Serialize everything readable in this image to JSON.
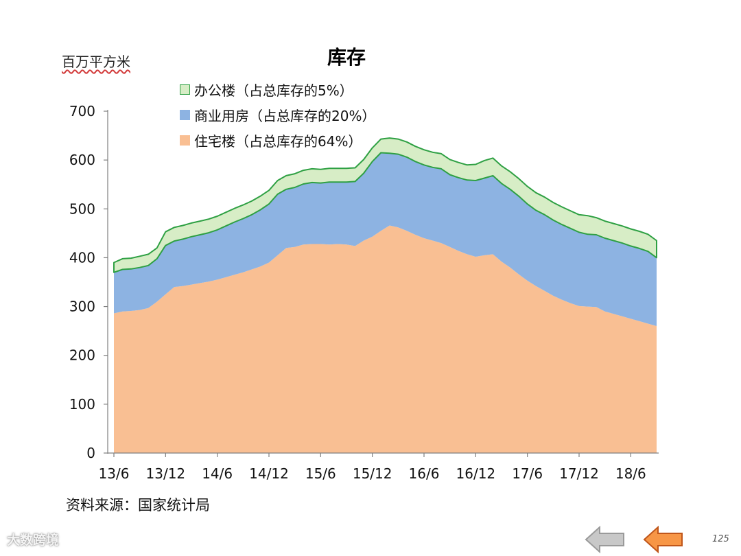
{
  "page": {
    "unit_label": "百万平方米",
    "title": "库存",
    "source": "资料来源：国家统计局",
    "watermark": "大数跨境",
    "page_number": "125",
    "nav": {
      "prev_icon": "left-arrow-icon",
      "next_icon": "left-arrow-icon"
    },
    "colors": {
      "residential": "#F9BF93",
      "commercial": "#8DB3E2",
      "office": "#D7EDC6",
      "office_border": "#2EA043",
      "prev_arrow": "#C8C8C8",
      "next_arrow": "#F79646"
    }
  },
  "chart_data": {
    "type": "area",
    "stacked": true,
    "title": "库存",
    "ylabel": "百万平方米",
    "ylim": [
      0,
      700
    ],
    "yticks": [
      0,
      100,
      200,
      300,
      400,
      500,
      600,
      700
    ],
    "x_tick_labels": [
      "13/6",
      "13/12",
      "14/6",
      "14/12",
      "15/6",
      "15/12",
      "16/6",
      "16/12",
      "17/6",
      "17/12",
      "18/6"
    ],
    "x_ticks_every": 6,
    "x": [
      "13/6",
      "13/7",
      "13/8",
      "13/9",
      "13/10",
      "13/11",
      "13/12",
      "14/1",
      "14/2",
      "14/3",
      "14/4",
      "14/5",
      "14/6",
      "14/7",
      "14/8",
      "14/9",
      "14/10",
      "14/11",
      "14/12",
      "15/1",
      "15/2",
      "15/3",
      "15/4",
      "15/5",
      "15/6",
      "15/7",
      "15/8",
      "15/9",
      "15/10",
      "15/11",
      "15/12",
      "16/1",
      "16/2",
      "16/3",
      "16/4",
      "16/5",
      "16/6",
      "16/7",
      "16/8",
      "16/9",
      "16/10",
      "16/11",
      "16/12",
      "17/1",
      "17/2",
      "17/3",
      "17/4",
      "17/5",
      "17/6",
      "17/7",
      "17/8",
      "17/9",
      "17/10",
      "17/11",
      "17/12",
      "18/1",
      "18/2",
      "18/3",
      "18/4",
      "18/5",
      "18/6",
      "18/7",
      "18/8",
      "18/9"
    ],
    "legend": [
      "办公楼（占总库存的5%）",
      "商业用房（占总库存的20%）",
      "住宅楼（占总库存的64%）"
    ],
    "series": [
      {
        "name": "住宅楼（占总库存的64%）",
        "values": [
          286,
          290,
          291,
          293,
          297,
          310,
          325,
          340,
          342,
          345,
          348,
          351,
          355,
          360,
          365,
          370,
          376,
          382,
          390,
          405,
          420,
          422,
          427,
          428,
          428,
          427,
          428,
          427,
          424,
          435,
          443,
          455,
          466,
          462,
          455,
          447,
          440,
          435,
          430,
          422,
          414,
          407,
          402,
          405,
          407,
          392,
          380,
          366,
          353,
          342,
          332,
          322,
          314,
          307,
          301,
          300,
          299,
          290,
          285,
          280,
          275,
          270,
          265,
          260
        ]
      },
      {
        "name": "商业用房（占总库存的20%）",
        "values": [
          84,
          86,
          86,
          87,
          87,
          88,
          100,
          94,
          96,
          98,
          99,
          100,
          102,
          105,
          108,
          110,
          112,
          116,
          120,
          125,
          120,
          122,
          124,
          126,
          125,
          128,
          127,
          128,
          132,
          138,
          154,
          160,
          148,
          150,
          151,
          150,
          150,
          150,
          152,
          148,
          150,
          152,
          156,
          158,
          161,
          160,
          160,
          160,
          157,
          155,
          156,
          155,
          154,
          153,
          151,
          148,
          148,
          150,
          150,
          150,
          149,
          149,
          148,
          140
        ]
      },
      {
        "name": "办公楼（占总库存的5%）",
        "values": [
          20,
          22,
          22,
          23,
          23,
          22,
          28,
          28,
          28,
          28,
          28,
          28,
          28,
          28,
          28,
          28,
          28,
          28,
          28,
          28,
          28,
          28,
          28,
          28,
          28,
          28,
          28,
          28,
          28,
          28,
          28,
          28,
          31,
          31,
          31,
          31,
          31,
          31,
          31,
          31,
          31,
          31,
          33,
          36,
          36,
          36,
          36,
          36,
          36,
          36,
          36,
          36,
          36,
          36,
          36,
          38,
          35,
          35,
          35,
          35,
          35,
          35,
          35,
          35
        ]
      }
    ]
  }
}
